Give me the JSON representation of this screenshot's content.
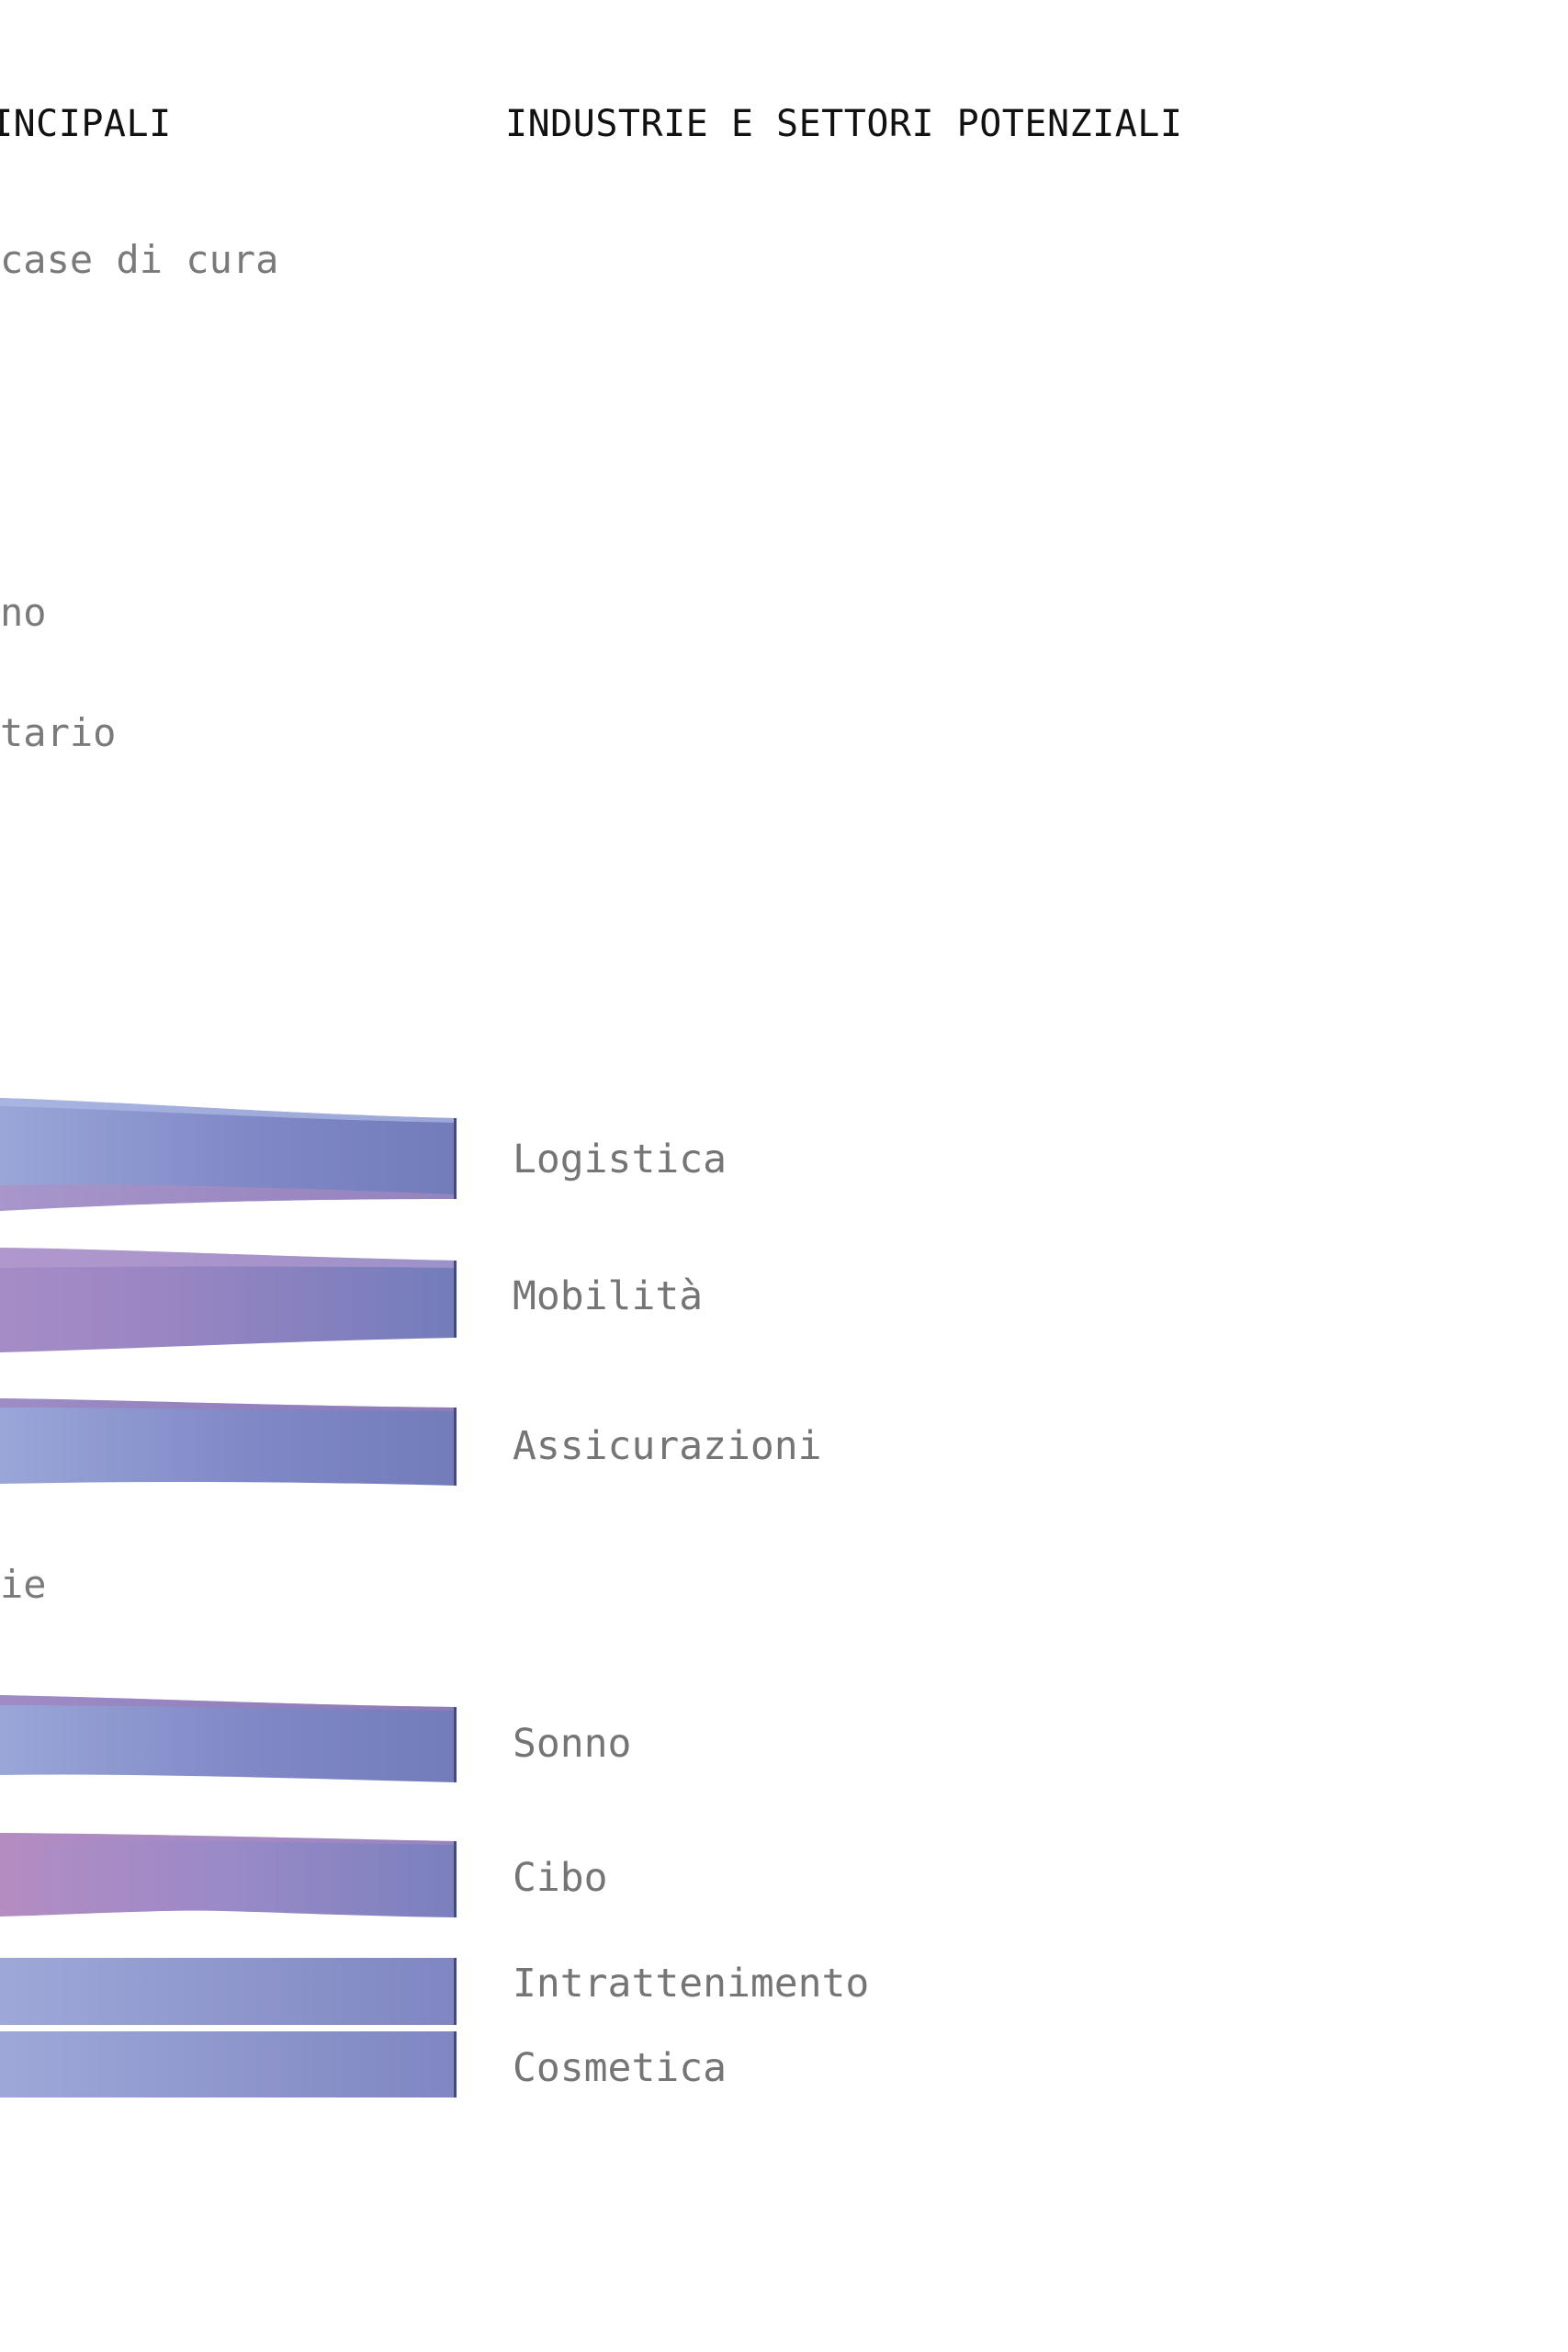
{
  "headings": {
    "left": "INCIPALI",
    "right": "INDUSTRIE E SETTORI POTENZIALI"
  },
  "left_labels": [
    "case di cura",
    "no",
    "tario",
    "ie"
  ],
  "industries": [
    "Logistica",
    "Mobilità",
    "Assicurazioni",
    "Sonno",
    "Cibo",
    "Intrattenimento",
    "Cosmetica"
  ],
  "colors": {
    "flow_dark": "#737cbb",
    "flow_light": "#96a3d6",
    "flow_pink": "#b38ac0",
    "node_edge": "#454a7a",
    "label": "#757575",
    "heading": "#111111"
  }
}
